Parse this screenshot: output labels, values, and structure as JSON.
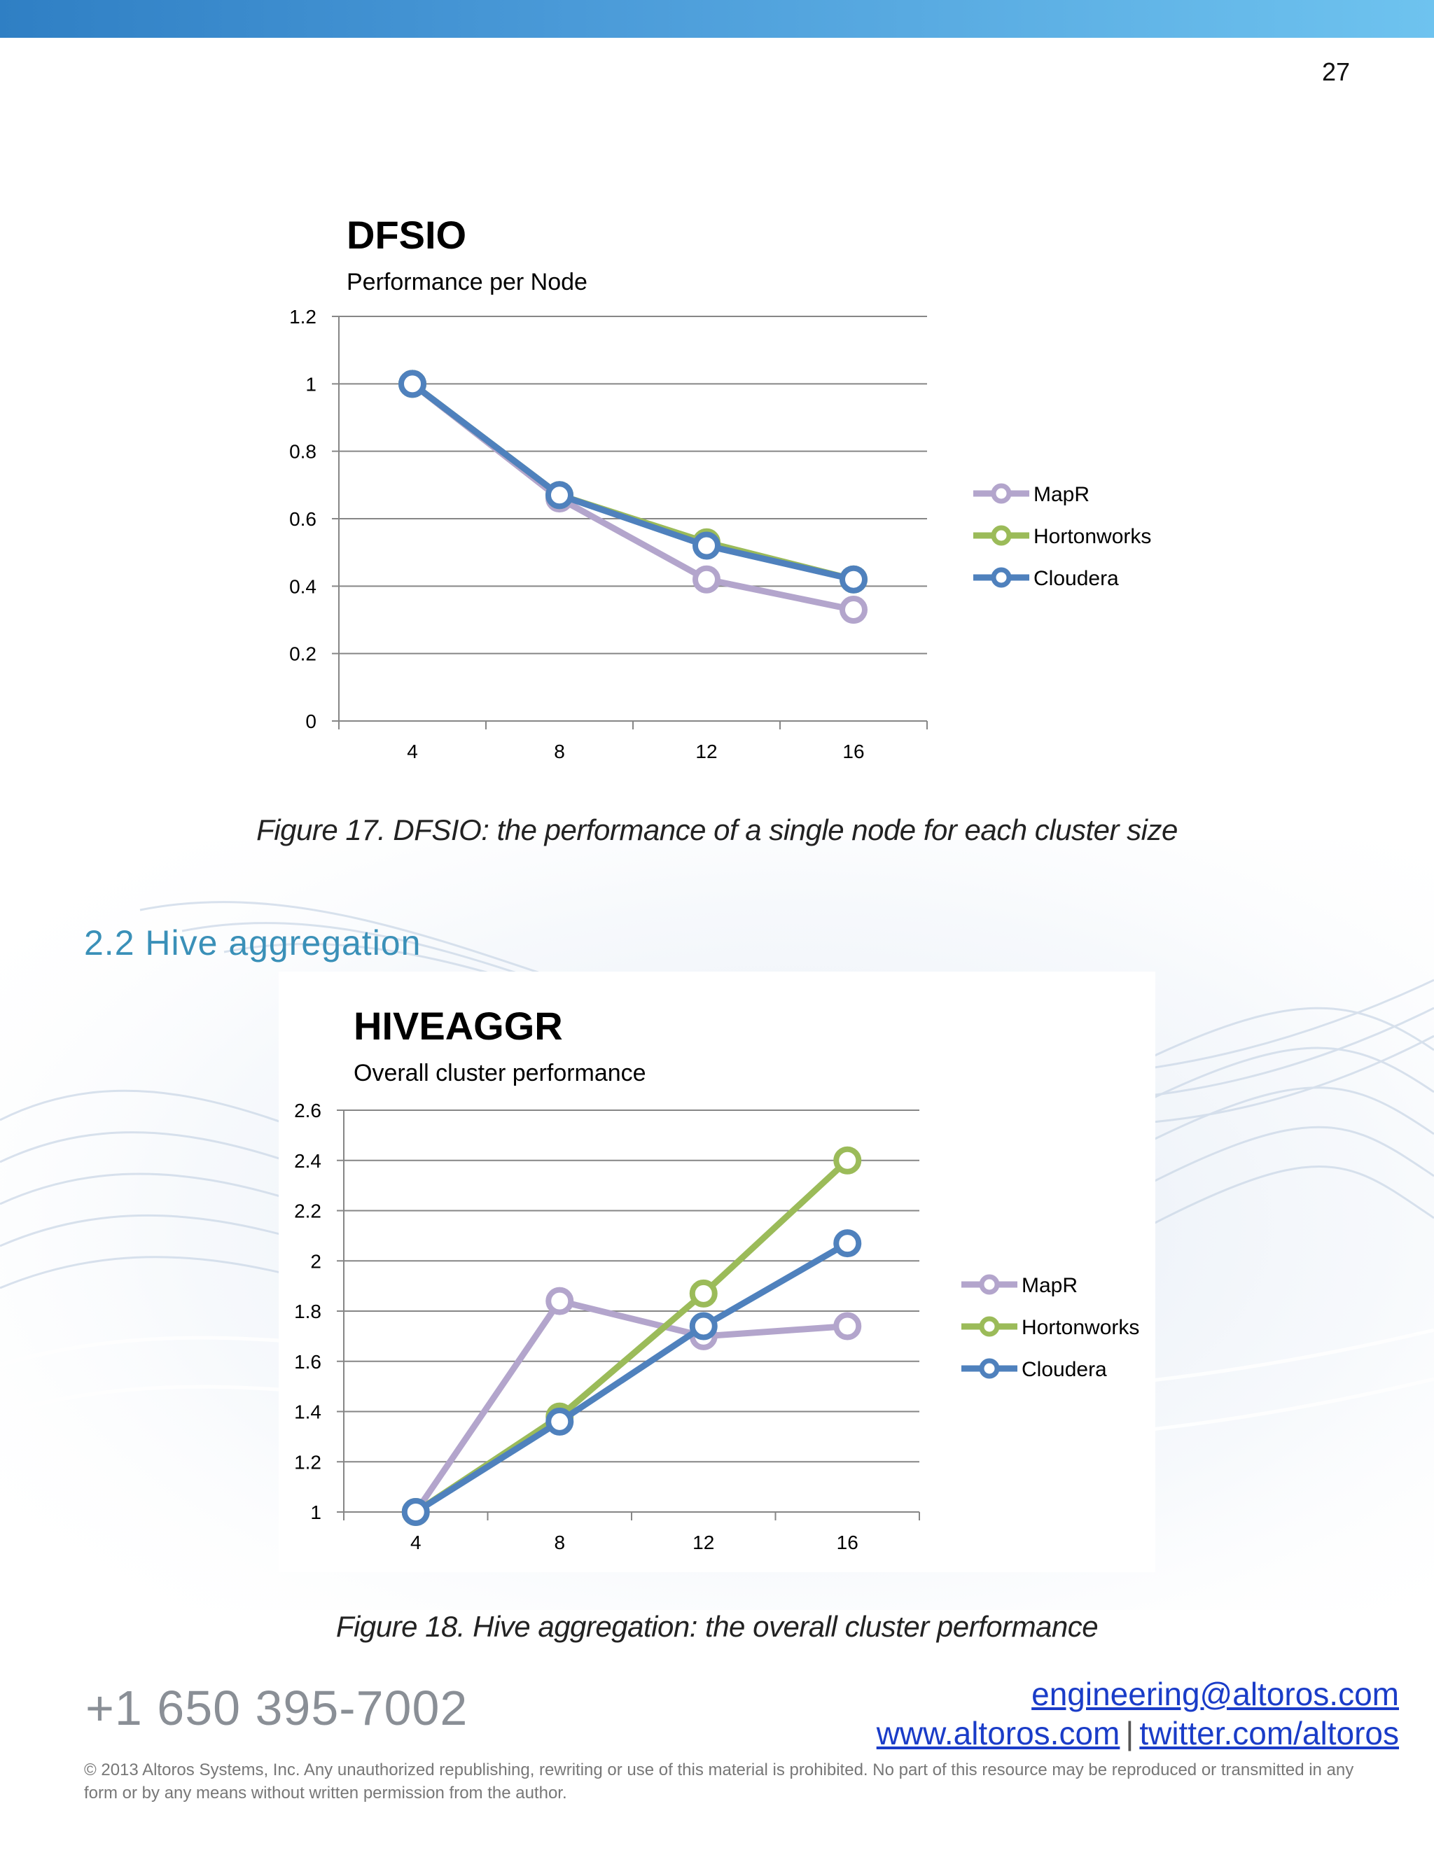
{
  "page": {
    "number": "27"
  },
  "colors": {
    "mapr": "#b3a5cc",
    "hortonworks": "#9bbb59",
    "cloudera": "#4f81bd",
    "grid": "#868686",
    "heading": "#3a90b8",
    "link": "#1a3cc8"
  },
  "section": {
    "heading": "2.2 Hive aggregation"
  },
  "chart_data": [
    {
      "type": "line",
      "title": "DFSIO",
      "subtitle": "Performance per Node",
      "categories": [
        "4",
        "8",
        "12",
        "16"
      ],
      "yticks": [
        "0",
        "0.2",
        "0.4",
        "0.6",
        "0.8",
        "1",
        "1.2"
      ],
      "ylim": [
        0,
        1.2
      ],
      "legend_position": "right",
      "series": [
        {
          "name": "MapR",
          "color": "#b3a5cc",
          "values": [
            1.0,
            0.66,
            0.42,
            0.33
          ]
        },
        {
          "name": "Hortonworks",
          "color": "#9bbb59",
          "values": [
            1.0,
            0.67,
            0.53,
            0.42
          ]
        },
        {
          "name": "Cloudera",
          "color": "#4f81bd",
          "values": [
            1.0,
            0.67,
            0.52,
            0.42
          ]
        }
      ]
    },
    {
      "type": "line",
      "title": "HIVEAGGR",
      "subtitle": "Overall cluster performance",
      "categories": [
        "4",
        "8",
        "12",
        "16"
      ],
      "yticks": [
        "1",
        "1.2",
        "1.4",
        "1.6",
        "1.8",
        "2",
        "2.2",
        "2.4",
        "2.6"
      ],
      "ylim": [
        1,
        2.6
      ],
      "legend_position": "right",
      "series": [
        {
          "name": "MapR",
          "color": "#b3a5cc",
          "values": [
            1.0,
            1.84,
            1.7,
            1.74
          ]
        },
        {
          "name": "Hortonworks",
          "color": "#9bbb59",
          "values": [
            1.0,
            1.38,
            1.87,
            2.4
          ]
        },
        {
          "name": "Cloudera",
          "color": "#4f81bd",
          "values": [
            1.0,
            1.36,
            1.74,
            2.07
          ]
        }
      ]
    }
  ],
  "captions": {
    "figure17": "Figure 17. DFSIO: the performance of a single node for each cluster size",
    "figure18": "Figure 18. Hive aggregation: the overall cluster performance"
  },
  "footer": {
    "phone": "+1 650 395-7002",
    "email": "engineering@altoros.com",
    "website": "www.altoros.com",
    "separator": "|",
    "twitter": "twitter.com/altoros",
    "legal": "© 2013 Altoros Systems, Inc. Any unauthorized republishing, rewriting or use of this material is prohibited. No part of this resource may be reproduced or transmitted in any form or by any means without written permission from the author."
  }
}
